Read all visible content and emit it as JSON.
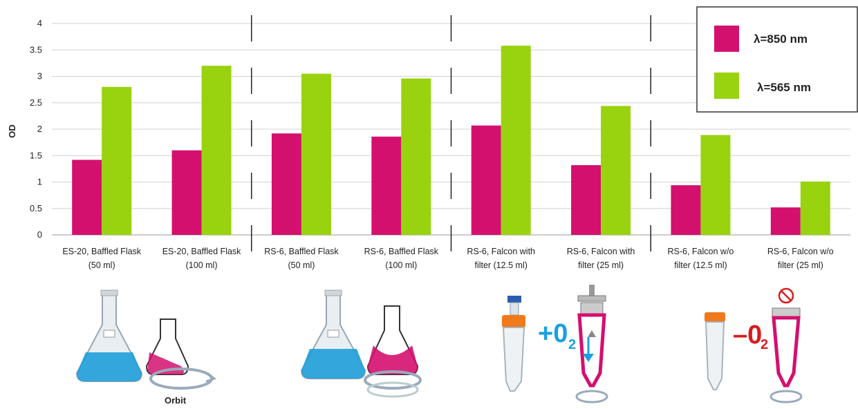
{
  "colors": {
    "series_850": "#d4106f",
    "series_565": "#99d20e",
    "o2_plus": "#1aa0e0",
    "o2_minus": "#d81c1c"
  },
  "chart_data": {
    "type": "bar",
    "ylabel": "OD",
    "xlabel": "",
    "ylim": [
      0,
      4
    ],
    "yticks": [
      "0",
      "0.5",
      "1",
      "1.5",
      "2",
      "2.5",
      "3",
      "3.5",
      "4"
    ],
    "grid": true,
    "legend_position": "top-right",
    "categories": [
      [
        "ES-20, Baffled Flask",
        "(50 ml)"
      ],
      [
        "ES-20, Baffled Flask",
        "(100 ml)"
      ],
      [
        "RS-6, Baffled Flask",
        "(50 ml)"
      ],
      [
        "RS-6, Baffled Flask",
        "(100 ml)"
      ],
      [
        "RS-6, Falcon with",
        "filter (12.5 ml)"
      ],
      [
        "RS-6, Falcon with",
        "filter (25 ml)"
      ],
      [
        "RS-6, Falcon w/o",
        "filter (12.5 ml)"
      ],
      [
        "RS-6, Falcon w/o",
        "filter (25 ml)"
      ]
    ],
    "series": [
      {
        "name": "λ=850 nm",
        "values": [
          1.42,
          1.6,
          1.92,
          1.86,
          2.07,
          1.32,
          0.94,
          0.52
        ]
      },
      {
        "name": "λ=565 nm",
        "values": [
          2.8,
          3.2,
          3.05,
          2.96,
          3.58,
          2.44,
          1.89,
          1.01
        ]
      }
    ]
  },
  "illustrations": {
    "orbit_label": "Orbit",
    "plus_o2": "+0",
    "minus_o2": "–0",
    "o2_subscript": "2",
    "icons": [
      "erlenmeyer-flask-icon",
      "orbit-icon",
      "falcon-tube-icon",
      "filter-cap-icon",
      "no-oxygen-icon"
    ]
  }
}
